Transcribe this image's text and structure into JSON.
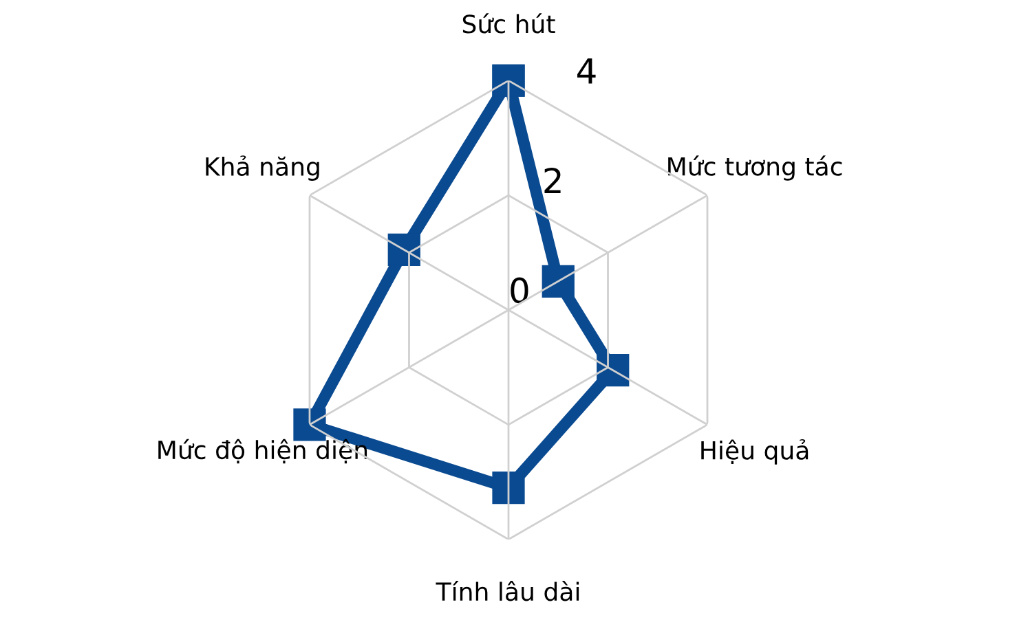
{
  "chart_data": {
    "type": "radar",
    "categories": [
      "Sức hút",
      "Mức tương tác",
      "Hiệu quả",
      "Tính lâu dài",
      "Mức độ hiện diện",
      "Khả năng"
    ],
    "series": [
      {
        "color": "#0a4a91",
        "values": [
          4,
          1.0,
          2.1,
          3.1,
          4,
          2.1
        ]
      }
    ],
    "ylim": [
      0,
      4
    ],
    "yticks": [
      0,
      2,
      4
    ],
    "grid": true,
    "marker": "square",
    "line_style": "solid",
    "legend": false
  }
}
